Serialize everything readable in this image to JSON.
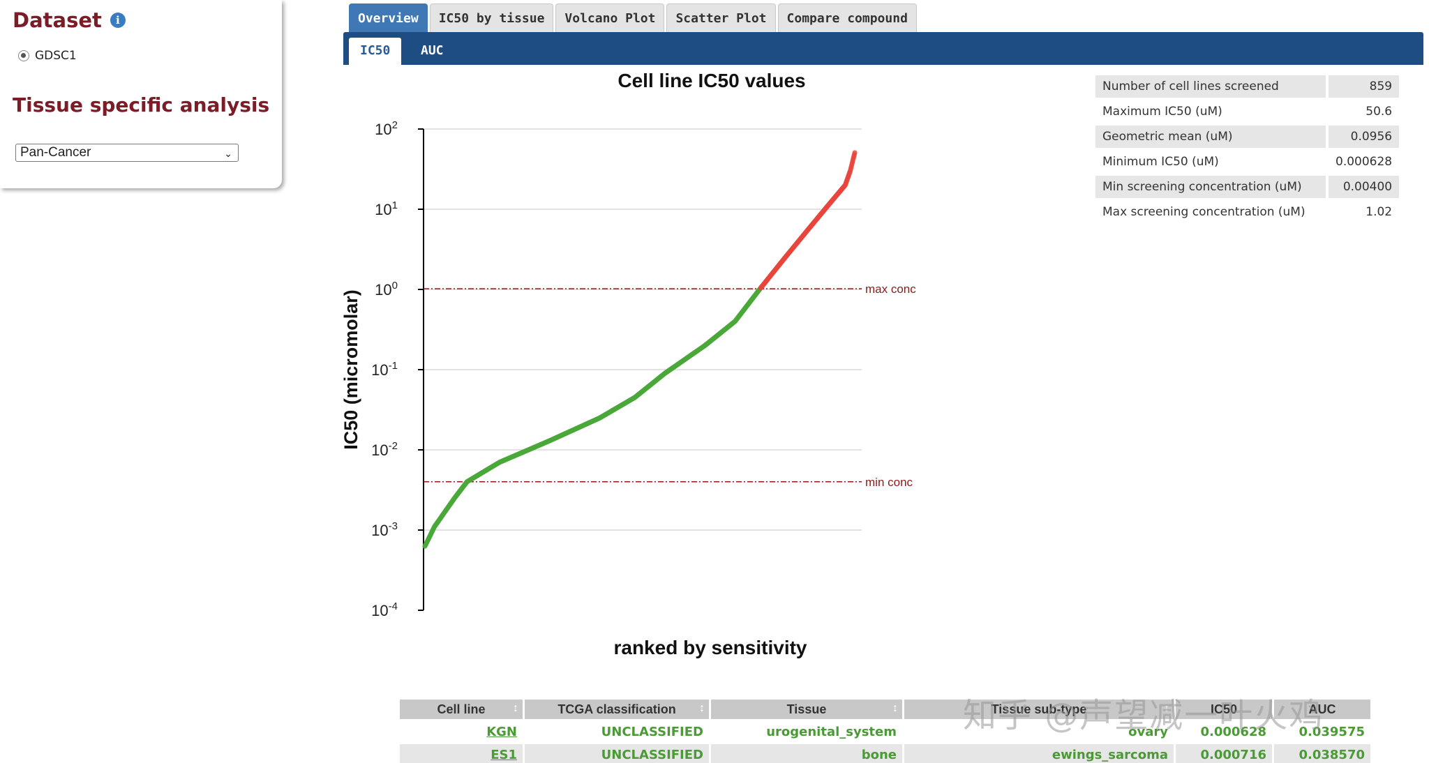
{
  "left_panel": {
    "dataset_title": "Dataset",
    "info_icon": "i",
    "dataset_option": "GDSC1",
    "tissue_title": "Tissue specific analysis",
    "tissue_select": "Pan-Cancer"
  },
  "tabs": [
    "Overview",
    "IC50 by tissue",
    "Volcano Plot",
    "Scatter Plot",
    "Compare compound"
  ],
  "active_tab": "Overview",
  "subtabs": {
    "ic50": "IC50",
    "auc": "AUC"
  },
  "stats": [
    {
      "label": "Number of cell lines screened",
      "value": "859"
    },
    {
      "label": "Maximum IC50 (uM)",
      "value": "50.6"
    },
    {
      "label": "Geometric mean (uM)",
      "value": "0.0956"
    },
    {
      "label": "Minimum IC50 (uM)",
      "value": "0.000628"
    },
    {
      "label": "Min screening concentration (uM)",
      "value": "0.00400"
    },
    {
      "label": "Max screening concentration (uM)",
      "value": "1.02"
    }
  ],
  "chart_data": {
    "type": "scatter",
    "title": "Cell line IC50 values",
    "xlabel": "ranked by sensitivity",
    "ylabel": "IC50 (micromolar)",
    "yscale": "log10",
    "ylim_exp": [
      -4,
      2
    ],
    "yticks": [
      {
        "base": "10",
        "exp": "-4"
      },
      {
        "base": "10",
        "exp": "-3"
      },
      {
        "base": "10",
        "exp": "-2"
      },
      {
        "base": "10",
        "exp": "-1"
      },
      {
        "base": "10",
        "exp": "0"
      },
      {
        "base": "10",
        "exp": "1"
      },
      {
        "base": "10",
        "exp": "2"
      }
    ],
    "n_points": 859,
    "reference_lines": [
      {
        "label": "max conc",
        "value": 1.02
      },
      {
        "label": "min conc",
        "value": 0.004
      }
    ],
    "colors": {
      "below_max": "#4aa83a",
      "above_max": "#e8453c",
      "ref_line": "#8b1a1a"
    },
    "curve_keypoints": [
      {
        "rank": 1,
        "ic50": 0.000628
      },
      {
        "rank": 20,
        "ic50": 0.0011
      },
      {
        "rank": 60,
        "ic50": 0.0025
      },
      {
        "rank": 85,
        "ic50": 0.004
      },
      {
        "rank": 150,
        "ic50": 0.007
      },
      {
        "rank": 250,
        "ic50": 0.013
      },
      {
        "rank": 350,
        "ic50": 0.025
      },
      {
        "rank": 420,
        "ic50": 0.045
      },
      {
        "rank": 480,
        "ic50": 0.09
      },
      {
        "rank": 560,
        "ic50": 0.2
      },
      {
        "rank": 620,
        "ic50": 0.4
      },
      {
        "rank": 670,
        "ic50": 1.02
      },
      {
        "rank": 720,
        "ic50": 2.5
      },
      {
        "rank": 770,
        "ic50": 6
      },
      {
        "rank": 810,
        "ic50": 12
      },
      {
        "rank": 840,
        "ic50": 20
      },
      {
        "rank": 850,
        "ic50": 30
      },
      {
        "rank": 859,
        "ic50": 50.6
      }
    ]
  },
  "data_table": {
    "headers": [
      "Cell line",
      "TCGA classification",
      "Tissue",
      "Tissue sub-type",
      "IC50",
      "AUC"
    ],
    "rows": [
      {
        "cell_line": "KGN",
        "tcga": "UNCLASSIFIED",
        "tissue": "urogenital_system",
        "subtype": "ovary",
        "ic50": "0.000628",
        "auc": "0.039575"
      },
      {
        "cell_line": "ES1",
        "tcga": "UNCLASSIFIED",
        "tissue": "bone",
        "subtype": "ewings_sarcoma",
        "ic50": "0.000716",
        "auc": "0.038570"
      }
    ]
  },
  "watermark": "知乎 @声望减一叶火鸡"
}
